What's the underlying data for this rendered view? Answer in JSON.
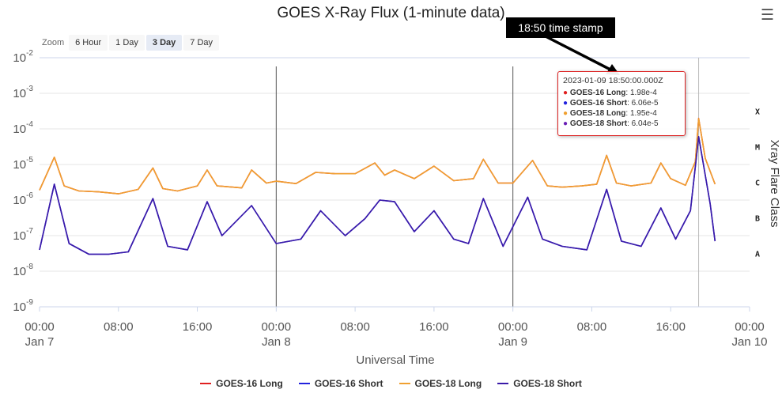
{
  "header": {
    "title": "GOES X-Ray Flux (1-minute data)",
    "menu_icon": "hamburger-menu-icon"
  },
  "zoom": {
    "label": "Zoom",
    "options": [
      "6 Hour",
      "1 Day",
      "3 Day",
      "7 Day"
    ],
    "selected": "3 Day"
  },
  "tooltip": {
    "time": "2023-01-09 18:50:00.000Z",
    "rows": [
      {
        "series": "GOES-16 Long",
        "value": "1.98e-4",
        "color": "#e02020"
      },
      {
        "series": "GOES-16 Short",
        "value": "6.06e-5",
        "color": "#2222dd"
      },
      {
        "series": "GOES-18 Long",
        "value": "1.95e-4",
        "color": "#f0a030"
      },
      {
        "series": "GOES-18 Short",
        "value": "6.04e-5",
        "color": "#6a1fb5"
      }
    ]
  },
  "annotation": {
    "text": "18:50 time stamp"
  },
  "chart_data": {
    "type": "line",
    "title": "GOES X-Ray Flux (1-minute data)",
    "xlabel": "Universal Time",
    "ylabel_right": "Xray Flare Class",
    "y_scale": "log",
    "ylim": [
      1e-09,
      0.01
    ],
    "y_ticks": [
      {
        "base": "10",
        "exp": "-9"
      },
      {
        "base": "10",
        "exp": "-8"
      },
      {
        "base": "10",
        "exp": "-7"
      },
      {
        "base": "10",
        "exp": "-6"
      },
      {
        "base": "10",
        "exp": "-5"
      },
      {
        "base": "10",
        "exp": "-4"
      },
      {
        "base": "10",
        "exp": "-3"
      },
      {
        "base": "10",
        "exp": "-2"
      }
    ],
    "xlim": [
      "2023-01-07 00:00",
      "2023-01-10 00:00"
    ],
    "x_ticks": [
      {
        "time": "2023-01-07 00:00",
        "label": "00:00",
        "sublabel": "Jan 7"
      },
      {
        "time": "2023-01-07 08:00",
        "label": "08:00",
        "sublabel": ""
      },
      {
        "time": "2023-01-07 16:00",
        "label": "16:00",
        "sublabel": ""
      },
      {
        "time": "2023-01-08 00:00",
        "label": "00:00",
        "sublabel": "Jan 8"
      },
      {
        "time": "2023-01-08 08:00",
        "label": "08:00",
        "sublabel": ""
      },
      {
        "time": "2023-01-08 16:00",
        "label": "16:00",
        "sublabel": ""
      },
      {
        "time": "2023-01-09 00:00",
        "label": "00:00",
        "sublabel": "Jan 9"
      },
      {
        "time": "2023-01-09 08:00",
        "label": "08:00",
        "sublabel": ""
      },
      {
        "time": "2023-01-09 16:00",
        "label": "16:00",
        "sublabel": ""
      },
      {
        "time": "2023-01-10 00:00",
        "label": "00:00",
        "sublabel": "Jan 10"
      }
    ],
    "day_boundaries": [
      "2023-01-08 00:00",
      "2023-01-09 00:00"
    ],
    "crosshair_time": "2023-01-09 18:50",
    "flare_classes": [
      {
        "label": "A",
        "flux": 1e-08
      },
      {
        "label": "B",
        "flux": 1e-07
      },
      {
        "label": "C",
        "flux": 1e-06
      },
      {
        "label": "M",
        "flux": 1e-05
      },
      {
        "label": "X",
        "flux": 0.0001
      }
    ],
    "grid": true,
    "legend_position": "bottom",
    "series": [
      {
        "name": "GOES-16 Long",
        "color": "#e02020",
        "points": [
          [
            "2023-01-07 00:00",
            1.9e-06
          ],
          [
            "2023-01-07 01:30",
            1.6e-05
          ],
          [
            "2023-01-07 02:30",
            2.5e-06
          ],
          [
            "2023-01-07 04:00",
            1.8e-06
          ],
          [
            "2023-01-07 06:00",
            1.7e-06
          ],
          [
            "2023-01-07 08:00",
            1.5e-06
          ],
          [
            "2023-01-07 10:00",
            2e-06
          ],
          [
            "2023-01-07 11:30",
            8e-06
          ],
          [
            "2023-01-07 12:30",
            2.1e-06
          ],
          [
            "2023-01-07 14:00",
            1.8e-06
          ],
          [
            "2023-01-07 16:00",
            2.5e-06
          ],
          [
            "2023-01-07 17:00",
            7e-06
          ],
          [
            "2023-01-07 18:00",
            2.5e-06
          ],
          [
            "2023-01-07 20:30",
            2.2e-06
          ],
          [
            "2023-01-07 21:30",
            7e-06
          ],
          [
            "2023-01-07 23:00",
            3e-06
          ],
          [
            "2023-01-08 00:00",
            3.4e-06
          ],
          [
            "2023-01-08 02:00",
            2.9e-06
          ],
          [
            "2023-01-08 04:00",
            6e-06
          ],
          [
            "2023-01-08 06:00",
            5.5e-06
          ],
          [
            "2023-01-08 08:00",
            5.5e-06
          ],
          [
            "2023-01-08 10:00",
            1.1e-05
          ],
          [
            "2023-01-08 11:00",
            5e-06
          ],
          [
            "2023-01-08 12:00",
            7e-06
          ],
          [
            "2023-01-08 14:00",
            4e-06
          ],
          [
            "2023-01-08 16:00",
            9e-06
          ],
          [
            "2023-01-08 18:00",
            3.5e-06
          ],
          [
            "2023-01-08 20:00",
            4e-06
          ],
          [
            "2023-01-08 21:00",
            1.4e-05
          ],
          [
            "2023-01-08 22:30",
            3e-06
          ],
          [
            "2023-01-09 00:00",
            3e-06
          ],
          [
            "2023-01-09 02:00",
            1.3e-05
          ],
          [
            "2023-01-09 03:30",
            2.5e-06
          ],
          [
            "2023-01-09 05:00",
            2.3e-06
          ],
          [
            "2023-01-09 07:00",
            2.5e-06
          ],
          [
            "2023-01-09 08:30",
            2.8e-06
          ],
          [
            "2023-01-09 09:30",
            1.8e-05
          ],
          [
            "2023-01-09 10:30",
            3e-06
          ],
          [
            "2023-01-09 12:00",
            2.5e-06
          ],
          [
            "2023-01-09 14:00",
            3e-06
          ],
          [
            "2023-01-09 15:00",
            1.1e-05
          ],
          [
            "2023-01-09 16:00",
            4e-06
          ],
          [
            "2023-01-09 17:30",
            2.6e-06
          ],
          [
            "2023-01-09 18:30",
            1.2e-05
          ],
          [
            "2023-01-09 18:50",
            0.000198
          ],
          [
            "2023-01-09 19:30",
            1.5e-05
          ],
          [
            "2023-01-09 20:30",
            2.8e-06
          ]
        ]
      },
      {
        "name": "GOES-16 Short",
        "color": "#2222dd",
        "points": [
          [
            "2023-01-07 00:00",
            4e-08
          ],
          [
            "2023-01-07 01:30",
            2.8e-06
          ],
          [
            "2023-01-07 03:00",
            6e-08
          ],
          [
            "2023-01-07 05:00",
            3e-08
          ],
          [
            "2023-01-07 07:00",
            3e-08
          ],
          [
            "2023-01-07 09:00",
            3.5e-08
          ],
          [
            "2023-01-07 11:30",
            1.1e-06
          ],
          [
            "2023-01-07 13:00",
            5e-08
          ],
          [
            "2023-01-07 15:00",
            4e-08
          ],
          [
            "2023-01-07 17:00",
            9e-07
          ],
          [
            "2023-01-07 18:30",
            1e-07
          ],
          [
            "2023-01-07 21:30",
            7e-07
          ],
          [
            "2023-01-08 00:00",
            6e-08
          ],
          [
            "2023-01-08 02:30",
            8e-08
          ],
          [
            "2023-01-08 04:30",
            5e-07
          ],
          [
            "2023-01-08 07:00",
            1e-07
          ],
          [
            "2023-01-08 09:00",
            3e-07
          ],
          [
            "2023-01-08 10:30",
            1e-06
          ],
          [
            "2023-01-08 12:00",
            9e-07
          ],
          [
            "2023-01-08 14:00",
            1.3e-07
          ],
          [
            "2023-01-08 16:00",
            5e-07
          ],
          [
            "2023-01-08 18:00",
            8e-08
          ],
          [
            "2023-01-08 19:30",
            6e-08
          ],
          [
            "2023-01-08 21:00",
            1.1e-06
          ],
          [
            "2023-01-08 23:00",
            5e-08
          ],
          [
            "2023-01-09 01:30",
            1.2e-06
          ],
          [
            "2023-01-09 03:00",
            8e-08
          ],
          [
            "2023-01-09 05:00",
            5e-08
          ],
          [
            "2023-01-09 07:30",
            4e-08
          ],
          [
            "2023-01-09 09:30",
            2e-06
          ],
          [
            "2023-01-09 11:00",
            7e-08
          ],
          [
            "2023-01-09 13:00",
            5e-08
          ],
          [
            "2023-01-09 15:00",
            6e-07
          ],
          [
            "2023-01-09 16:30",
            8e-08
          ],
          [
            "2023-01-09 18:00",
            5e-07
          ],
          [
            "2023-01-09 18:50",
            6.06e-05
          ],
          [
            "2023-01-09 20:00",
            8e-07
          ],
          [
            "2023-01-09 20:30",
            7e-08
          ]
        ]
      },
      {
        "name": "GOES-18 Long",
        "color": "#f0a030",
        "points": [
          [
            "2023-01-07 00:00",
            1.9e-06
          ],
          [
            "2023-01-07 01:30",
            1.6e-05
          ],
          [
            "2023-01-07 02:30",
            2.5e-06
          ],
          [
            "2023-01-07 04:00",
            1.8e-06
          ],
          [
            "2023-01-07 06:00",
            1.7e-06
          ],
          [
            "2023-01-07 08:00",
            1.5e-06
          ],
          [
            "2023-01-07 10:00",
            2e-06
          ],
          [
            "2023-01-07 11:30",
            8e-06
          ],
          [
            "2023-01-07 12:30",
            2.1e-06
          ],
          [
            "2023-01-07 14:00",
            1.8e-06
          ],
          [
            "2023-01-07 16:00",
            2.5e-06
          ],
          [
            "2023-01-07 17:00",
            7e-06
          ],
          [
            "2023-01-07 18:00",
            2.5e-06
          ],
          [
            "2023-01-07 20:30",
            2.2e-06
          ],
          [
            "2023-01-07 21:30",
            7e-06
          ],
          [
            "2023-01-07 23:00",
            3e-06
          ],
          [
            "2023-01-08 00:00",
            3.4e-06
          ],
          [
            "2023-01-08 02:00",
            2.9e-06
          ],
          [
            "2023-01-08 04:00",
            6e-06
          ],
          [
            "2023-01-08 06:00",
            5.5e-06
          ],
          [
            "2023-01-08 08:00",
            5.5e-06
          ],
          [
            "2023-01-08 10:00",
            1.1e-05
          ],
          [
            "2023-01-08 11:00",
            5e-06
          ],
          [
            "2023-01-08 12:00",
            7e-06
          ],
          [
            "2023-01-08 14:00",
            4e-06
          ],
          [
            "2023-01-08 16:00",
            9e-06
          ],
          [
            "2023-01-08 18:00",
            3.5e-06
          ],
          [
            "2023-01-08 20:00",
            4e-06
          ],
          [
            "2023-01-08 21:00",
            1.4e-05
          ],
          [
            "2023-01-08 22:30",
            3e-06
          ],
          [
            "2023-01-09 00:00",
            3e-06
          ],
          [
            "2023-01-09 02:00",
            1.3e-05
          ],
          [
            "2023-01-09 03:30",
            2.5e-06
          ],
          [
            "2023-01-09 05:00",
            2.3e-06
          ],
          [
            "2023-01-09 07:00",
            2.5e-06
          ],
          [
            "2023-01-09 08:30",
            2.8e-06
          ],
          [
            "2023-01-09 09:30",
            1.8e-05
          ],
          [
            "2023-01-09 10:30",
            3e-06
          ],
          [
            "2023-01-09 12:00",
            2.5e-06
          ],
          [
            "2023-01-09 14:00",
            3e-06
          ],
          [
            "2023-01-09 15:00",
            1.1e-05
          ],
          [
            "2023-01-09 16:00",
            4e-06
          ],
          [
            "2023-01-09 17:30",
            2.6e-06
          ],
          [
            "2023-01-09 18:30",
            1.2e-05
          ],
          [
            "2023-01-09 18:50",
            0.000195
          ],
          [
            "2023-01-09 19:30",
            1.5e-05
          ],
          [
            "2023-01-09 20:30",
            2.8e-06
          ]
        ]
      },
      {
        "name": "GOES-18 Short",
        "color": "#3a1aa8",
        "points": [
          [
            "2023-01-07 00:00",
            4e-08
          ],
          [
            "2023-01-07 01:30",
            2.8e-06
          ],
          [
            "2023-01-07 03:00",
            6e-08
          ],
          [
            "2023-01-07 05:00",
            3e-08
          ],
          [
            "2023-01-07 07:00",
            3e-08
          ],
          [
            "2023-01-07 09:00",
            3.5e-08
          ],
          [
            "2023-01-07 11:30",
            1.1e-06
          ],
          [
            "2023-01-07 13:00",
            5e-08
          ],
          [
            "2023-01-07 15:00",
            4e-08
          ],
          [
            "2023-01-07 17:00",
            9e-07
          ],
          [
            "2023-01-07 18:30",
            1e-07
          ],
          [
            "2023-01-07 21:30",
            7e-07
          ],
          [
            "2023-01-08 00:00",
            6e-08
          ],
          [
            "2023-01-08 02:30",
            8e-08
          ],
          [
            "2023-01-08 04:30",
            5e-07
          ],
          [
            "2023-01-08 07:00",
            1e-07
          ],
          [
            "2023-01-08 09:00",
            3e-07
          ],
          [
            "2023-01-08 10:30",
            1e-06
          ],
          [
            "2023-01-08 12:00",
            9e-07
          ],
          [
            "2023-01-08 14:00",
            1.3e-07
          ],
          [
            "2023-01-08 16:00",
            5e-07
          ],
          [
            "2023-01-08 18:00",
            8e-08
          ],
          [
            "2023-01-08 19:30",
            6e-08
          ],
          [
            "2023-01-08 21:00",
            1.1e-06
          ],
          [
            "2023-01-08 23:00",
            5e-08
          ],
          [
            "2023-01-09 01:30",
            1.2e-06
          ],
          [
            "2023-01-09 03:00",
            8e-08
          ],
          [
            "2023-01-09 05:00",
            5e-08
          ],
          [
            "2023-01-09 07:30",
            4e-08
          ],
          [
            "2023-01-09 09:30",
            2e-06
          ],
          [
            "2023-01-09 11:00",
            7e-08
          ],
          [
            "2023-01-09 13:00",
            5e-08
          ],
          [
            "2023-01-09 15:00",
            6e-07
          ],
          [
            "2023-01-09 16:30",
            8e-08
          ],
          [
            "2023-01-09 18:00",
            5e-07
          ],
          [
            "2023-01-09 18:50",
            6.04e-05
          ],
          [
            "2023-01-09 20:00",
            8e-07
          ],
          [
            "2023-01-09 20:30",
            7e-08
          ]
        ]
      }
    ]
  }
}
